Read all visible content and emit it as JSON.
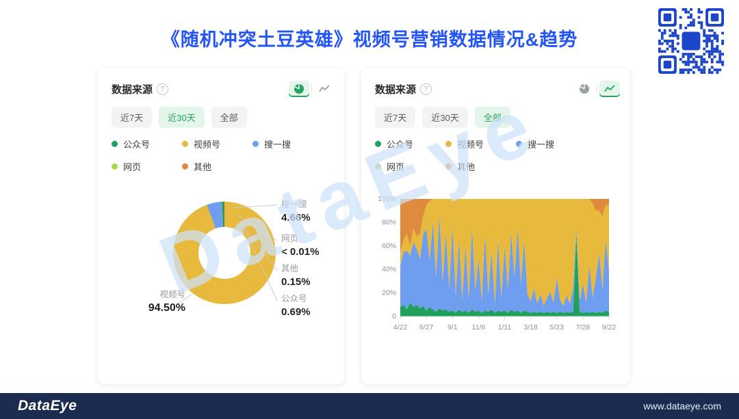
{
  "title": "《随机冲突土豆英雄》视频号营销数据情况&趋势",
  "watermark_text": "DataEye",
  "footer": {
    "logo_text": "DataEye",
    "website": "www.dataeye.com"
  },
  "colors": {
    "title_blue": "#2355f6",
    "active_green": "#27a35f",
    "active_green_bg": "#e4f6ec",
    "qr_blue": "#1b46c8",
    "footer_navy": "#1c2b50"
  },
  "legend": [
    {
      "label": "公众号",
      "color": "#1fa15c"
    },
    {
      "label": "视频号",
      "color": "#e7b93c"
    },
    {
      "label": "搜一搜",
      "color": "#6f9ef0"
    },
    {
      "label": "网页",
      "color": "#a6d94e"
    },
    {
      "label": "其他",
      "color": "#de8b3e"
    }
  ],
  "left_panel": {
    "header": "数据来源",
    "help_icon": "?",
    "view_toggle": {
      "pie": true,
      "line": false
    },
    "filters": [
      {
        "label": "近7天",
        "active": false
      },
      {
        "label": "近30天",
        "active": true
      },
      {
        "label": "全部",
        "active": false
      }
    ],
    "chart_data": {
      "type": "pie",
      "donut": true,
      "title": "数据来源",
      "start_angle_deg": 340,
      "slices": [
        {
          "name": "搜一搜",
          "value": 4.66,
          "display": "4.66%",
          "color": "#6f9ef0"
        },
        {
          "name": "网页",
          "value": 0.01,
          "display": "< 0.01%",
          "color": "#a6d94e"
        },
        {
          "name": "其他",
          "value": 0.15,
          "display": "0.15%",
          "color": "#de8b3e"
        },
        {
          "name": "公众号",
          "value": 0.69,
          "display": "0.69%",
          "color": "#1fa15c"
        },
        {
          "name": "视频号",
          "value": 94.5,
          "display": "94.50%",
          "color": "#e7b93c"
        }
      ]
    }
  },
  "right_panel": {
    "header": "数据来源",
    "help_icon": "?",
    "view_toggle": {
      "pie": false,
      "line": true
    },
    "filters": [
      {
        "label": "近7天",
        "active": false
      },
      {
        "label": "近30天",
        "active": false
      },
      {
        "label": "全部",
        "active": true
      }
    ],
    "chart_data": {
      "type": "area",
      "stacked": true,
      "percent": true,
      "title": "数据来源",
      "x_ticks": [
        "4/22",
        "6/27",
        "9/1",
        "11/6",
        "1/11",
        "3/18",
        "5/23",
        "7/28",
        "9/22"
      ],
      "y_ticks": [
        "100%",
        "80%",
        "60%",
        "40%",
        "20%",
        "0"
      ],
      "y_tick_values": [
        100,
        80,
        60,
        40,
        20,
        0
      ],
      "ylim": [
        0,
        100
      ],
      "series": [
        {
          "name": "公众号",
          "color": "#1fa15c",
          "values": [
            8,
            10,
            6,
            12,
            8,
            10,
            7,
            9,
            5,
            8,
            6,
            4,
            7,
            5,
            6,
            4,
            5,
            3,
            6,
            4,
            5,
            3,
            6,
            4,
            5,
            3,
            5,
            4,
            6,
            3,
            5,
            4,
            5,
            3,
            6,
            4,
            5,
            3,
            5,
            4,
            3,
            4,
            3,
            4,
            3,
            4,
            3,
            4,
            3,
            4,
            3,
            4,
            3,
            4,
            70,
            4,
            3,
            4,
            3,
            4,
            3,
            4,
            3,
            5,
            4
          ]
        },
        {
          "name": "搜一搜",
          "color": "#6f9ef0",
          "values": [
            35,
            45,
            50,
            40,
            55,
            48,
            42,
            60,
            70,
            40,
            75,
            30,
            80,
            25,
            65,
            20,
            72,
            15,
            60,
            10,
            55,
            12,
            70,
            18,
            45,
            10,
            65,
            15,
            50,
            8,
            60,
            12,
            55,
            20,
            65,
            30,
            70,
            25,
            60,
            15,
            10,
            20,
            8,
            15,
            6,
            12,
            18,
            8,
            30,
            10,
            6,
            14,
            8,
            20,
            5,
            10,
            25,
            8,
            40,
            12,
            30,
            50,
            20,
            60,
            35
          ]
        },
        {
          "name": "视频号",
          "color": "#e7b93c",
          "values": [
            12,
            10,
            14,
            8,
            12,
            10,
            21,
            16,
            20,
            50,
            19,
            66,
            13,
            70,
            29,
            76,
            23,
            82,
            34,
            86,
            40,
            85,
            24,
            78,
            50,
            87,
            30,
            81,
            44,
            89,
            35,
            84,
            40,
            77,
            29,
            66,
            25,
            72,
            35,
            81,
            87,
            76,
            89,
            81,
            91,
            84,
            79,
            88,
            67,
            86,
            91,
            82,
            89,
            76,
            25,
            86,
            72,
            88,
            57,
            80,
            57,
            36,
            62,
            30,
            55
          ]
        },
        {
          "name": "其他",
          "color": "#de8b3e",
          "values": [
            45,
            35,
            30,
            40,
            25,
            32,
            30,
            15,
            5,
            2,
            0,
            0,
            0,
            0,
            0,
            0,
            0,
            0,
            0,
            0,
            0,
            0,
            0,
            0,
            0,
            0,
            0,
            0,
            0,
            0,
            0,
            0,
            0,
            0,
            0,
            0,
            0,
            0,
            0,
            0,
            0,
            0,
            0,
            0,
            0,
            0,
            0,
            0,
            0,
            0,
            0,
            0,
            0,
            0,
            0,
            0,
            0,
            0,
            0,
            4,
            10,
            10,
            15,
            5,
            6
          ]
        }
      ]
    }
  }
}
